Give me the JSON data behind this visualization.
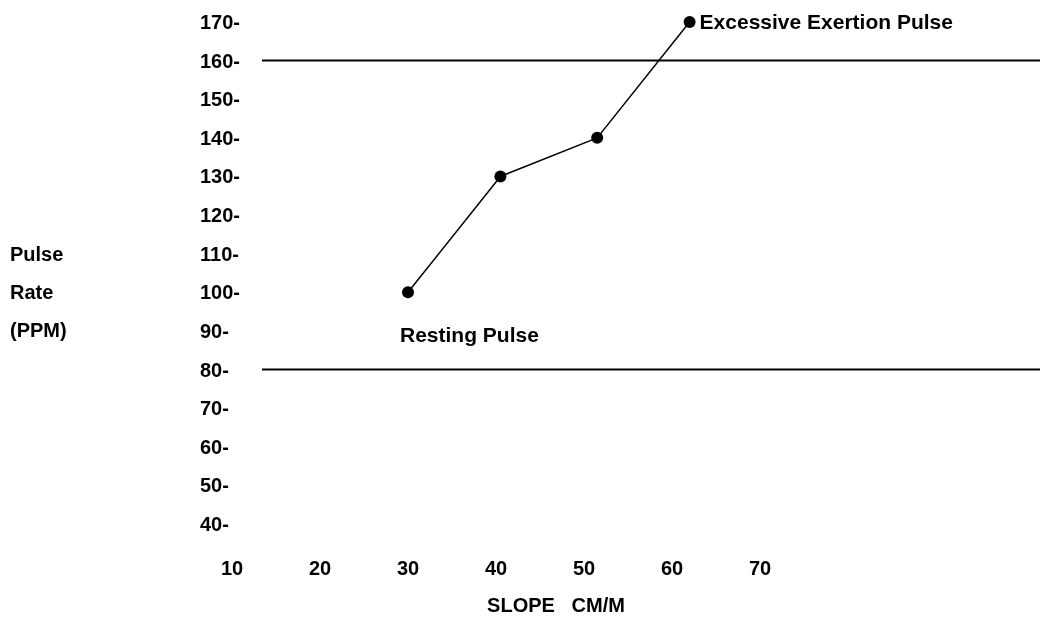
{
  "chart_data": {
    "type": "line",
    "xlabel": "SLOPE   CM/M",
    "x": [
      30,
      40.5,
      51.5,
      62
    ],
    "series": [
      {
        "color": "#000000",
        "values": [
          100,
          130,
          140,
          170
        ]
      }
    ],
    "marker": "circle",
    "line_style": "solid",
    "xlim": [
      10,
      70
    ],
    "xticks": [
      10,
      20,
      30,
      40,
      50,
      60,
      70
    ],
    "ylim": [
      40,
      170
    ],
    "yticks": [
      {
        "value": 40,
        "label": "40-"
      },
      {
        "value": 50,
        "label": "50-"
      },
      {
        "value": 60,
        "label": "60-"
      },
      {
        "value": 70,
        "label": "70-"
      },
      {
        "value": 80,
        "label": "80-"
      },
      {
        "value": 90,
        "label": "90-"
      },
      {
        "value": 100,
        "label": "100-"
      },
      {
        "value": 110,
        "label": "110-"
      },
      {
        "value": 120,
        "label": "120-"
      },
      {
        "value": 130,
        "label": "130-"
      },
      {
        "value": 140,
        "label": "140-"
      },
      {
        "value": 150,
        "label": "150-"
      },
      {
        "value": 160,
        "label": "160-"
      },
      {
        "value": 170,
        "label": "170-"
      }
    ],
    "ref_lines": [
      {
        "axis": "y",
        "value": 160,
        "color": "#000000"
      },
      {
        "axis": "y",
        "value": 80,
        "color": "#000000"
      }
    ],
    "annotations": [
      {
        "text": "Excessive Exertion   Pulse",
        "x": 62,
        "y": 170
      },
      {
        "text": "Resting Pulse",
        "x": 30,
        "y": 100
      },
      "Pulse Rate (PPM)"
    ]
  }
}
